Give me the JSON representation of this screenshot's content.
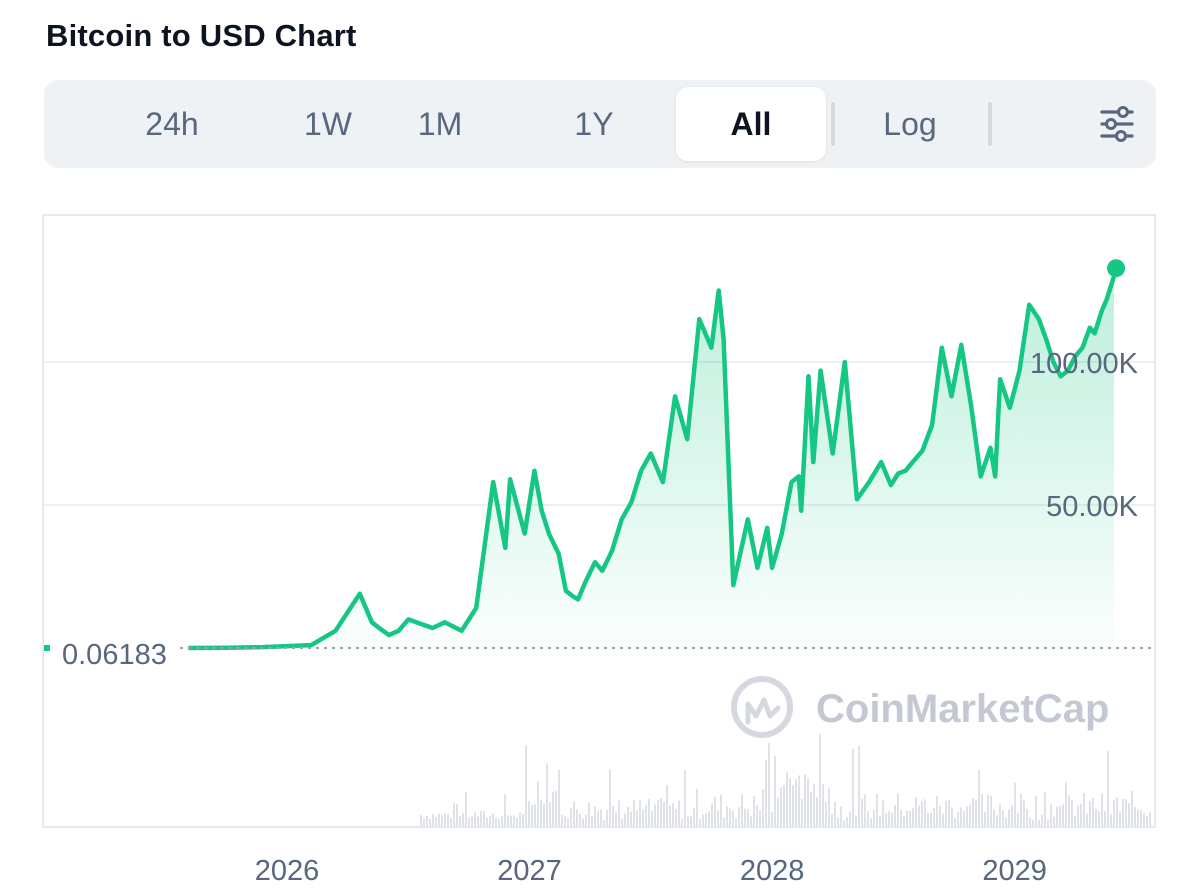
{
  "header": {
    "title": "Bitcoin to USD Chart"
  },
  "tabs": [
    {
      "label": "24h",
      "active": false
    },
    {
      "label": "1W",
      "active": false
    },
    {
      "label": "1M",
      "active": false
    },
    {
      "label": "1Y",
      "active": false
    },
    {
      "label": "All",
      "active": true
    },
    {
      "label": "Log",
      "active": false
    }
  ],
  "settings_icon": "sliders-icon",
  "watermark": {
    "text": "CoinMarketCap",
    "icon": "coinmarketcap-logo-icon"
  },
  "colors": {
    "line": "#16c784",
    "accent_dark": "#0d1421",
    "muted": "#58667e"
  },
  "chart_data": {
    "type": "area",
    "title": "Bitcoin to USD Chart",
    "xlabel": "",
    "ylabel": "",
    "y_tick_labels": [
      "100.00K",
      "50.00K"
    ],
    "y_ticks": [
      100000,
      50000
    ],
    "baseline_label": "0.06183",
    "baseline_value": 0.06183,
    "x_tick_labels": [
      "2026",
      "2027",
      "2028",
      "2029"
    ],
    "x_ticks": [
      2026,
      2027,
      2028,
      2029
    ],
    "xlim": [
      2025.6,
      2029.55
    ],
    "ylim": [
      0.06183,
      135000
    ],
    "grid": true,
    "legend": "none",
    "series": [
      {
        "x": [
          2025.6,
          2025.75,
          2025.9,
          2026.1,
          2026.2,
          2026.3,
          2026.35,
          2026.38,
          2026.42,
          2026.46,
          2026.5,
          2026.6,
          2026.65,
          2026.72,
          2026.78,
          2026.85,
          2026.9,
          2026.92,
          2026.98,
          2027.02,
          2027.05,
          2027.08,
          2027.12,
          2027.15,
          2027.18,
          2027.2,
          2027.23,
          2027.27,
          2027.3,
          2027.34,
          2027.38,
          2027.42,
          2027.46,
          2027.5,
          2027.55,
          2027.6,
          2027.65,
          2027.7,
          2027.75,
          2027.78,
          2027.8,
          2027.84,
          2027.9,
          2027.94,
          2027.98,
          2028.0,
          2028.04,
          2028.08,
          2028.11,
          2028.12,
          2028.15,
          2028.17,
          2028.2,
          2028.25,
          2028.3,
          2028.35,
          2028.4,
          2028.45,
          2028.49,
          2028.52,
          2028.55,
          2028.58,
          2028.62,
          2028.66,
          2028.7,
          2028.74,
          2028.78,
          2028.82,
          2028.86,
          2028.9,
          2028.92,
          2028.94,
          2028.98,
          2029.02,
          2029.06,
          2029.1,
          2029.13,
          2029.16,
          2029.19,
          2029.22,
          2029.25,
          2029.28,
          2029.31,
          2029.33,
          2029.36,
          2029.38,
          2029.41
        ],
        "values": [
          0.06183,
          100,
          300,
          1000,
          6000,
          19000,
          9000,
          7000,
          4500,
          6000,
          10000,
          7000,
          9000,
          6000,
          14000,
          58000,
          35000,
          59000,
          40000,
          62000,
          48000,
          40000,
          33000,
          20000,
          18000,
          17000,
          23000,
          30000,
          27000,
          34000,
          45000,
          51000,
          62000,
          68000,
          58000,
          88000,
          73000,
          115000,
          105000,
          125000,
          108000,
          22000,
          45000,
          28000,
          42000,
          28000,
          40000,
          58000,
          60000,
          48000,
          95000,
          65000,
          97000,
          68000,
          100000,
          52000,
          58000,
          65000,
          57000,
          61000,
          62000,
          65000,
          69000,
          78000,
          105000,
          88000,
          106000,
          85000,
          60000,
          70000,
          60000,
          94000,
          84000,
          97000,
          120000,
          115000,
          108000,
          100000,
          95000,
          97000,
          102000,
          105000,
          112000,
          110000,
          118000,
          122000,
          130000
        ]
      }
    ]
  }
}
